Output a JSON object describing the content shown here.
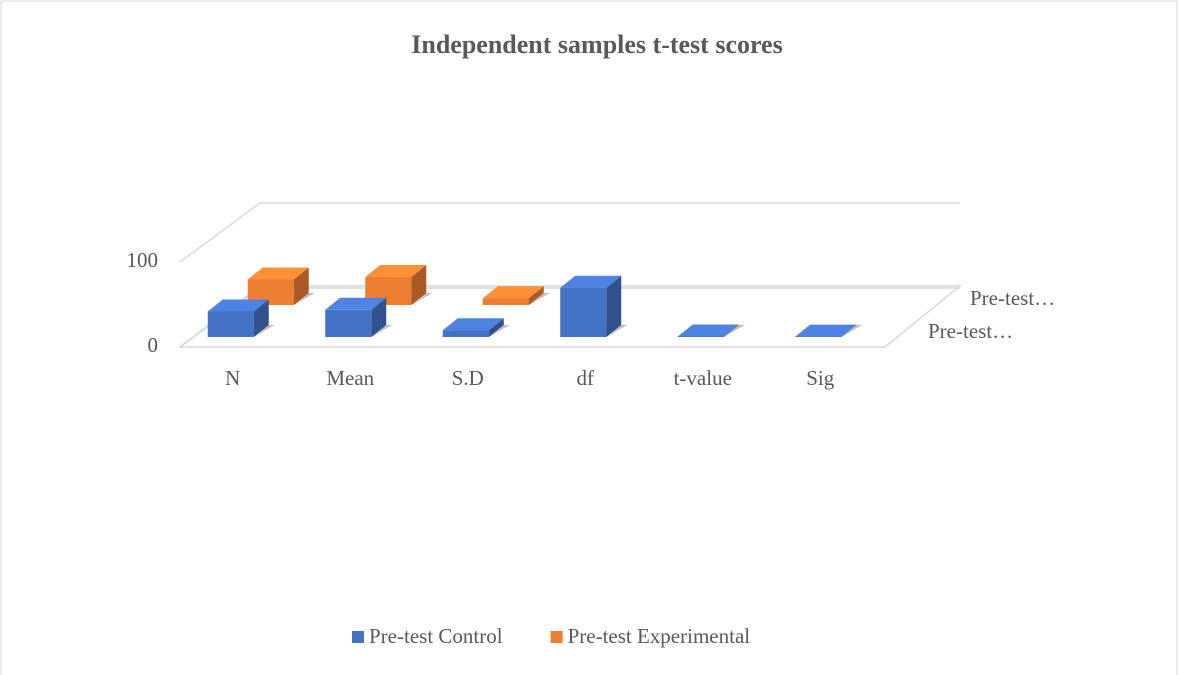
{
  "chart_data": {
    "type": "bar3d",
    "title": "Independent samples t-test scores",
    "categories": [
      "N",
      "Mean",
      "S.D",
      "df",
      "t-value",
      "Sig"
    ],
    "series": [
      {
        "name": "Pre-test Control",
        "color": "#4472c4",
        "values": [
          30,
          32,
          8,
          58,
          0.6,
          0.5
        ]
      },
      {
        "name": "Pre-test Experimental",
        "color": "#ed7d31",
        "values": [
          30,
          33,
          8,
          null,
          null,
          null
        ]
      }
    ],
    "series_axis_labels": [
      "Pre-test…",
      "Pre-test…"
    ],
    "ylim": [
      0,
      100
    ],
    "yticks": [
      0,
      100
    ],
    "grid": true,
    "legend": "bottom"
  }
}
